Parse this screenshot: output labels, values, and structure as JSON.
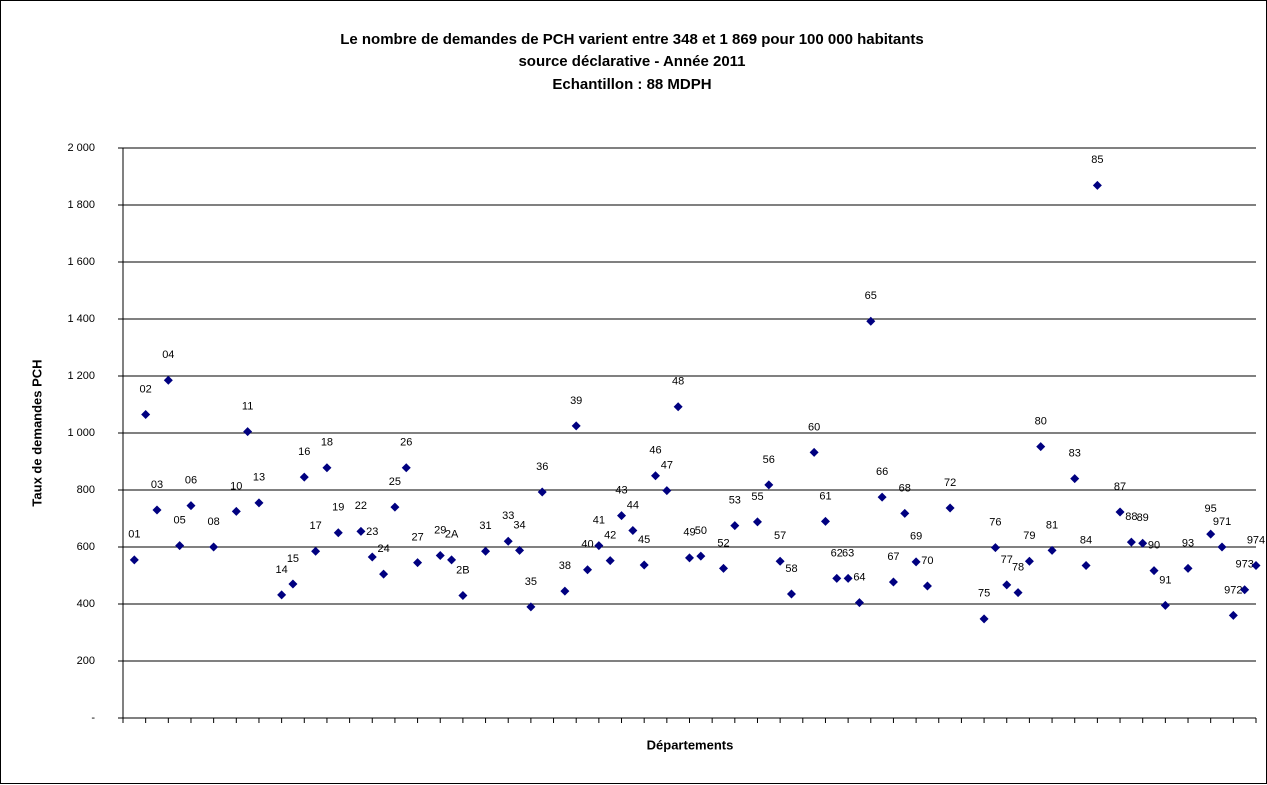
{
  "chart_data": {
    "type": "scatter",
    "title": [
      "Le nombre de demandes de PCH varient entre 348 et 1 869 pour 100 000 habitants",
      "source déclarative -  Année 2011",
      "Echantillon : 88 MDPH"
    ],
    "x_label": "Départements",
    "y_label": "Taux de demandes PCH",
    "color": "#000080",
    "grid": true,
    "ylim": [
      0,
      2000
    ],
    "yticks": [
      {
        "value": 0,
        "label": "-"
      },
      200,
      400,
      600,
      800,
      {
        "value": 1000,
        "label": "1 000"
      },
      {
        "value": 1200,
        "label": "1 200"
      },
      {
        "value": 1400,
        "label": "1 400"
      },
      {
        "value": 1600,
        "label": "1 600"
      },
      {
        "value": 1800,
        "label": "1 800"
      },
      {
        "value": 2000,
        "label": "2 000"
      }
    ],
    "categories": [
      "01",
      "02",
      "03",
      "04",
      "05",
      "06",
      null,
      "08",
      null,
      "10",
      "11",
      "13",
      null,
      "14",
      "15",
      "16",
      "17",
      "18",
      "19",
      null,
      "22",
      "23",
      "24",
      "25",
      "26",
      "27",
      null,
      "29",
      "2A",
      "2B",
      null,
      "31",
      null,
      "33",
      "34",
      "35",
      "36",
      null,
      "38",
      "39",
      "40",
      "41",
      "42",
      "43",
      "44",
      "45",
      "46",
      "47",
      "48",
      "49",
      "50",
      null,
      "52",
      "53",
      null,
      "55",
      "56",
      "57",
      "58",
      null,
      "60",
      "61",
      "62",
      "63",
      "64",
      "65",
      "66",
      "67",
      "68",
      "69",
      "70",
      null,
      "72",
      null,
      null,
      "75",
      "76",
      "77",
      "78",
      "79",
      "80",
      "81",
      null,
      "83",
      "84",
      "85",
      null,
      "87",
      "88",
      "89",
      "90",
      "91",
      null,
      "93",
      null,
      "95",
      "971",
      "972",
      "973",
      "974"
    ],
    "values": [
      555,
      1065,
      730,
      1185,
      605,
      745,
      null,
      600,
      null,
      725,
      1005,
      755,
      null,
      432,
      470,
      845,
      585,
      878,
      650,
      null,
      655,
      565,
      505,
      740,
      878,
      545,
      null,
      570,
      555,
      430,
      null,
      585,
      null,
      620,
      588,
      390,
      793,
      null,
      445,
      1025,
      520,
      605,
      552,
      710,
      658,
      537,
      850,
      798,
      1092,
      562,
      568,
      null,
      525,
      675,
      null,
      688,
      818,
      550,
      435,
      null,
      932,
      690,
      490,
      490,
      405,
      1392,
      775,
      477,
      718,
      548,
      463,
      null,
      737,
      null,
      null,
      348,
      598,
      467,
      440,
      550,
      952,
      588,
      null,
      840,
      535,
      1869,
      null,
      723,
      617,
      613,
      517,
      395,
      null,
      525,
      null,
      645,
      600,
      360,
      450,
      535
    ]
  }
}
